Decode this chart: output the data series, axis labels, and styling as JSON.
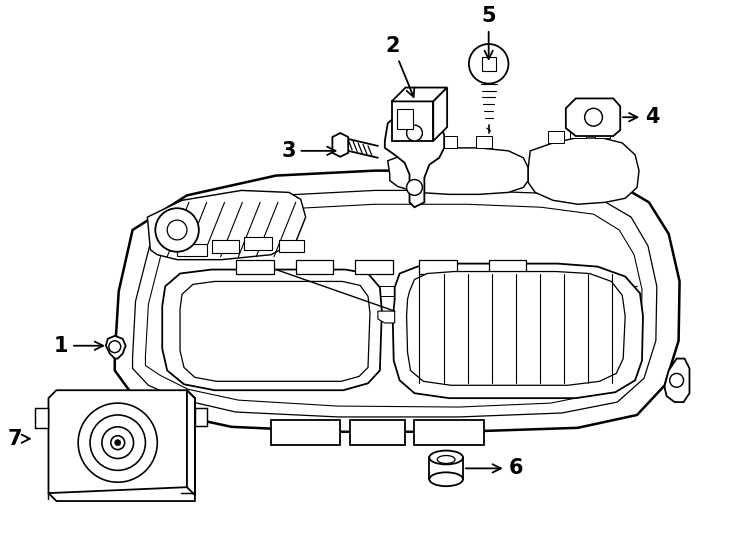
{
  "bg_color": "#ffffff",
  "line_color": "#000000",
  "lw": 1.3,
  "fig_width": 7.34,
  "fig_height": 5.4,
  "dpi": 100
}
